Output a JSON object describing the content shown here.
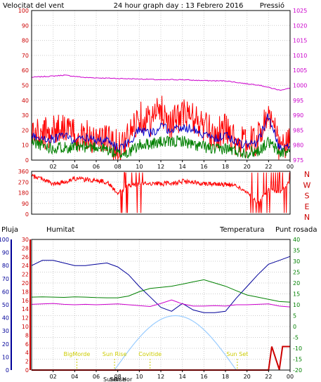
{
  "header": {
    "left_label": "Velocitat del vent",
    "title": "24 hour graph day : 13 Febrero 2016",
    "right_label": "Pressió"
  },
  "colors": {
    "wind": "#ff0000",
    "wind_avg": "#0000cc",
    "gust_low": "#008000",
    "pressure": "#cc00cc",
    "humidity": "#000099",
    "temperature": "#008000",
    "dewpoint": "#cc00cc",
    "rain": "#cc0000",
    "sun": "#99ccff",
    "sun_label": "#cccc00",
    "label_magenta": "#cc00cc",
    "label_red": "#cc0000",
    "label_blue": "#000099",
    "label_green": "#008000"
  },
  "x_ticks": [
    "02",
    "04",
    "06",
    "08",
    "10",
    "12",
    "14",
    "16",
    "18",
    "20",
    "22",
    "00"
  ],
  "chart_data": [
    {
      "type": "line",
      "title": "24 hour graph day : 13 Febrero 2016",
      "ylabel": "Velocitat del vent",
      "y2label": "Pressió",
      "ylim": [
        0,
        100
      ],
      "y_ticks": [
        "0",
        "10",
        "20",
        "30",
        "40",
        "50",
        "60",
        "70",
        "80",
        "90",
        "100"
      ],
      "y2lim": [
        975,
        1025
      ],
      "y2_ticks": [
        "975",
        "980",
        "985",
        "990",
        "995",
        "1000",
        "1005",
        "1010",
        "1015",
        "1020",
        "1025"
      ],
      "x": [
        0,
        1,
        2,
        3,
        4,
        5,
        6,
        7,
        8,
        9,
        10,
        11,
        12,
        13,
        14,
        15,
        16,
        17,
        18,
        19,
        20,
        21,
        22,
        23,
        24
      ],
      "series": [
        {
          "key": "wind",
          "values": [
            18,
            17,
            20,
            23,
            16,
            18,
            14,
            14,
            9,
            15,
            30,
            26,
            34,
            24,
            31,
            28,
            22,
            17,
            21,
            13,
            11,
            14,
            32,
            9,
            11
          ]
        },
        {
          "key": "wind_avg",
          "values": [
            16,
            15,
            14,
            17,
            13,
            15,
            13,
            13,
            8,
            12,
            20,
            18,
            22,
            20,
            22,
            21,
            17,
            14,
            17,
            12,
            10,
            12,
            30,
            8,
            10
          ]
        },
        {
          "key": "gust_low",
          "values": [
            12,
            10,
            8,
            9,
            8,
            9,
            9,
            7,
            4,
            5,
            10,
            11,
            12,
            12,
            13,
            10,
            9,
            7,
            8,
            6,
            5,
            6,
            12,
            5,
            6
          ]
        },
        {
          "key": "pressure",
          "axis": "y2",
          "values": [
            1002.7,
            1002.9,
            1003.1,
            1003.4,
            1003.0,
            1002.6,
            1002.5,
            1002.4,
            1002.3,
            1002.2,
            1002.1,
            1002.0,
            1001.8,
            1001.9,
            1001.9,
            1001.7,
            1001.6,
            1001.5,
            1001.5,
            1001.0,
            1000.5,
            1000.2,
            999.3,
            998.4,
            999.0
          ]
        }
      ]
    },
    {
      "type": "scatter",
      "ylim": [
        0,
        360
      ],
      "y_ticks": [
        "0",
        "90",
        "180",
        "270",
        "360"
      ],
      "compass": [
        "N",
        "W",
        "S",
        "E",
        "N"
      ],
      "series": [
        {
          "key": "wind_direction",
          "x": [
            0,
            1,
            2,
            3,
            4,
            5,
            6,
            7,
            8,
            9,
            10,
            11,
            12,
            13,
            14,
            15,
            16,
            17,
            18,
            19,
            20,
            21,
            22,
            23,
            24
          ],
          "values": [
            320,
            300,
            250,
            270,
            300,
            290,
            285,
            270,
            180,
            240,
            250,
            260,
            255,
            260,
            275,
            265,
            260,
            255,
            250,
            240,
            180,
            90,
            200,
            180,
            270
          ]
        }
      ]
    },
    {
      "type": "line",
      "labels": {
        "rain": "Pluja",
        "humidity": "Humitat",
        "temperature": "Temperatura",
        "dewpoint": "Punt rosada"
      },
      "rain_ylim": [
        0,
        30
      ],
      "rain_ticks": [
        "0",
        "2",
        "4",
        "6",
        "8",
        "10",
        "12",
        "14",
        "16",
        "18",
        "20",
        "22",
        "24",
        "26",
        "28",
        "30"
      ],
      "hum_ylim": [
        0,
        100
      ],
      "hum_ticks": [
        "0",
        "10",
        "20",
        "30",
        "40",
        "50",
        "60",
        "70",
        "80",
        "90",
        "100"
      ],
      "temp_ylim": [
        -20,
        40
      ],
      "temp_ticks": [
        "-20",
        "-15",
        "-10",
        "-5",
        "0",
        "5",
        "10",
        "15",
        "20",
        "25",
        "30",
        "35",
        "40"
      ],
      "x": [
        0,
        1,
        2,
        3,
        4,
        5,
        6,
        7,
        8,
        9,
        10,
        11,
        12,
        13,
        14,
        15,
        16,
        17,
        18,
        19,
        20,
        21,
        22,
        23,
        24
      ],
      "series": [
        {
          "key": "humidity",
          "axis": "hum",
          "values": [
            80,
            84,
            84,
            82,
            80,
            80,
            81,
            82,
            79,
            73,
            64,
            56,
            48,
            45,
            51,
            46,
            44,
            44,
            45,
            55,
            64,
            73,
            81,
            84,
            87
          ]
        },
        {
          "key": "temperature",
          "axis": "temp",
          "values": [
            13.5,
            13.6,
            13.5,
            13.4,
            13.6,
            13.5,
            13.3,
            13.2,
            13.2,
            14.0,
            16.0,
            17.5,
            18.0,
            18.5,
            19.5,
            20.5,
            21.5,
            20.0,
            18.5,
            16.5,
            14.5,
            13.5,
            12.5,
            11.5,
            11.2
          ]
        },
        {
          "key": "dewpoint",
          "axis": "temp",
          "values": [
            10.2,
            10.4,
            10.6,
            10.2,
            10.0,
            10.2,
            10.0,
            10.2,
            10.4,
            10.0,
            9.6,
            9.2,
            10.6,
            12.2,
            10.4,
            9.4,
            9.4,
            9.6,
            9.4,
            10.0,
            10.0,
            10.2,
            10.4,
            9.4,
            9.0
          ]
        },
        {
          "key": "rain",
          "axis": "rain",
          "values": [
            0,
            0,
            0,
            0,
            0,
            0,
            0,
            0,
            0,
            0,
            0,
            0,
            0,
            0,
            0,
            0,
            0,
            0,
            0,
            0,
            0,
            0,
            0,
            0.1,
            5.4
          ]
        }
      ],
      "solar": {
        "key": "sun",
        "axis": "temp",
        "rise_hour": 7.7,
        "set_hour": 19.0,
        "peak": 5.0,
        "base": -20
      },
      "annotations": [
        {
          "text": "BigMorde",
          "hour": 4.2
        },
        {
          "text": "Sun Rise",
          "hour": 7.7
        },
        {
          "text": "SunRise",
          "hour": 7.7,
          "low": true
        },
        {
          "text": "Sun Hor",
          "hour": 8.3,
          "low": true
        },
        {
          "text": "Covitide",
          "hour": 11.0
        },
        {
          "text": "Sun Set",
          "hour": 19.1
        }
      ]
    }
  ]
}
